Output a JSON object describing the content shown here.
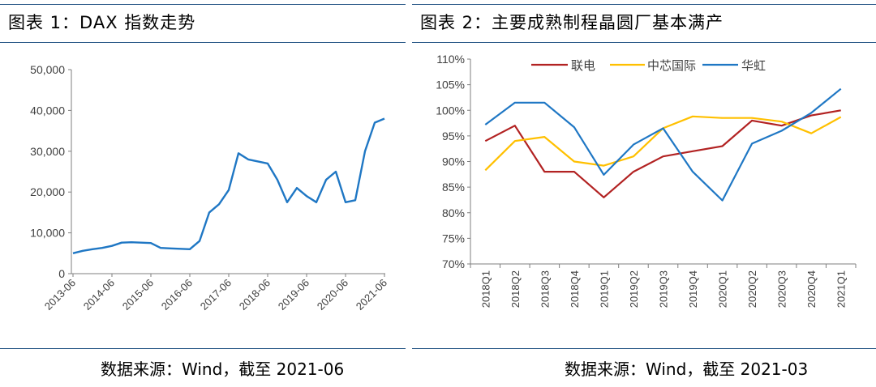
{
  "left_panel": {
    "title": "图表 1：DAX 指数走势",
    "source": "数据来源：Wind，截至 2021-06"
  },
  "right_panel": {
    "title": "图表 2：主要成熟制程晶圆厂基本满产",
    "source": "数据来源：Wind，截至 2021-03"
  },
  "colors": {
    "rule": "#2e5c8a",
    "dax_line": "#1f77c4",
    "umc": "#b22222",
    "smic": "#ffc000",
    "hlmc": "#1f77c4"
  },
  "chart_data": [
    {
      "type": "line",
      "title": "",
      "xlabel": "",
      "ylabel": "",
      "ylim": [
        0,
        50000
      ],
      "yticks": [
        "0",
        "10,000",
        "20,000",
        "30,000",
        "40,000",
        "50,000"
      ],
      "yticks_values": [
        0,
        10000,
        20000,
        30000,
        40000,
        50000
      ],
      "xticks": [
        "2013-06",
        "2014-06",
        "2015-06",
        "2016-06",
        "2017-06",
        "2018-06",
        "2019-06",
        "2020-06",
        "2021-06"
      ],
      "grid": false,
      "series": [
        {
          "x": [
            "2013-06",
            "2013-09",
            "2013-12",
            "2014-03",
            "2014-06",
            "2014-09",
            "2014-12",
            "2015-03",
            "2015-06",
            "2015-09",
            "2015-12",
            "2016-03",
            "2016-06",
            "2016-09",
            "2016-12",
            "2017-03",
            "2017-06",
            "2017-09",
            "2017-12",
            "2018-03",
            "2018-06",
            "2018-09",
            "2018-12",
            "2019-03",
            "2019-06",
            "2019-09",
            "2019-12",
            "2020-03",
            "2020-06",
            "2020-09",
            "2020-12",
            "2021-03",
            "2021-06"
          ],
          "values": [
            5000,
            5600,
            6000,
            6300,
            6800,
            7600,
            7700,
            7600,
            7500,
            6300,
            6200,
            6100,
            6000,
            8000,
            15000,
            17000,
            20500,
            29500,
            28000,
            27500,
            27000,
            23000,
            17500,
            21000,
            19000,
            17500,
            23000,
            25000,
            17500,
            18000,
            30000,
            37000,
            38000
          ]
        }
      ]
    },
    {
      "type": "line",
      "title": "",
      "xlabel": "",
      "ylabel": "",
      "ylim": [
        70,
        110
      ],
      "yticks": [
        "70%",
        "75%",
        "80%",
        "85%",
        "90%",
        "95%",
        "100%",
        "105%",
        "110%"
      ],
      "yticks_values": [
        70,
        75,
        80,
        85,
        90,
        95,
        100,
        105,
        110
      ],
      "categories": [
        "2018Q1",
        "2018Q2",
        "2018Q3",
        "2018Q4",
        "2019Q1",
        "2019Q2",
        "2019Q3",
        "2019Q4",
        "2020Q1",
        "2020Q2",
        "2020Q3",
        "2020Q4",
        "2021Q1"
      ],
      "legend": "top",
      "grid": false,
      "series": [
        {
          "name": "联电",
          "color": "#b22222",
          "values": [
            94,
            97,
            88,
            88,
            83,
            88,
            91,
            92,
            93,
            98,
            97,
            99,
            100
          ]
        },
        {
          "name": "中芯国际",
          "color": "#ffc000",
          "values": [
            88.3,
            94,
            94.8,
            90,
            89.2,
            91,
            96.5,
            98.8,
            98.5,
            98.5,
            97.8,
            95.5,
            98.7
          ]
        },
        {
          "name": "华虹",
          "color": "#1f77c4",
          "values": [
            97.2,
            101.5,
            101.5,
            96.7,
            87.4,
            93.3,
            96.5,
            88,
            82.4,
            93.5,
            96,
            99.5,
            104.2
          ]
        }
      ]
    }
  ]
}
